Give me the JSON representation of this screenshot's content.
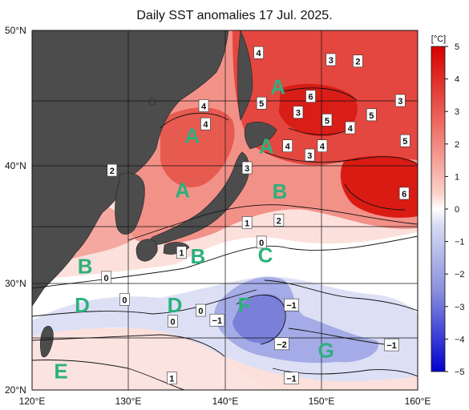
{
  "map": {
    "title": "Daily SST anomalies 17 Jul. 2025.",
    "lat_labels": [
      "50°N",
      "40°N",
      "30°N",
      "20°N"
    ],
    "lon_labels": [
      "120°E",
      "130°E",
      "140°E",
      "150°E",
      "160°E"
    ],
    "regions": [
      {
        "id": "A1",
        "label": "A",
        "lon": 145.5,
        "lat": 46.0
      },
      {
        "id": "A2",
        "label": "A",
        "lon": 136.6,
        "lat": 42.3
      },
      {
        "id": "A3",
        "label": "A",
        "lon": 144.3,
        "lat": 41.5
      },
      {
        "id": "A4",
        "label": "A",
        "lon": 135.6,
        "lat": 38.0
      },
      {
        "id": "B1",
        "label": "B",
        "lon": 145.7,
        "lat": 37.9
      },
      {
        "id": "B2",
        "label": "B",
        "lon": 137.2,
        "lat": 32.4
      },
      {
        "id": "B3",
        "label": "B",
        "lon": 125.5,
        "lat": 31.5
      },
      {
        "id": "C",
        "label": "C",
        "lon": 144.2,
        "lat": 32.5
      },
      {
        "id": "D1",
        "label": "D",
        "lon": 125.2,
        "lat": 28.0
      },
      {
        "id": "D2",
        "label": "D",
        "lon": 134.8,
        "lat": 28.0
      },
      {
        "id": "E",
        "label": "E",
        "lon": 123.0,
        "lat": 21.8
      },
      {
        "id": "F",
        "label": "F",
        "lon": 142.0,
        "lat": 28.0
      },
      {
        "id": "G",
        "label": "G",
        "lon": 150.5,
        "lat": 23.8
      }
    ],
    "contour_labels": [
      {
        "text": "4",
        "lon": 143.5,
        "lat": 48.4
      },
      {
        "text": "3",
        "lon": 151.0,
        "lat": 47.9
      },
      {
        "text": "2",
        "lon": 153.8,
        "lat": 47.8
      },
      {
        "text": "4",
        "lon": 137.8,
        "lat": 44.6
      },
      {
        "text": "4",
        "lon": 138.0,
        "lat": 43.2
      },
      {
        "text": "5",
        "lon": 143.8,
        "lat": 44.8
      },
      {
        "text": "6",
        "lon": 148.9,
        "lat": 45.3
      },
      {
        "text": "3",
        "lon": 147.6,
        "lat": 44.1
      },
      {
        "text": "3",
        "lon": 158.2,
        "lat": 45.0
      },
      {
        "text": "5",
        "lon": 150.6,
        "lat": 43.5
      },
      {
        "text": "5",
        "lon": 155.2,
        "lat": 43.9
      },
      {
        "text": "4",
        "lon": 153.0,
        "lat": 42.9
      },
      {
        "text": "4",
        "lon": 146.5,
        "lat": 41.5
      },
      {
        "text": "4",
        "lon": 150.1,
        "lat": 41.5
      },
      {
        "text": "3",
        "lon": 148.8,
        "lat": 40.8
      },
      {
        "text": "5",
        "lon": 158.7,
        "lat": 41.9
      },
      {
        "text": "2",
        "lon": 128.3,
        "lat": 39.6
      },
      {
        "text": "3",
        "lon": 142.3,
        "lat": 39.8
      },
      {
        "text": "6",
        "lon": 158.6,
        "lat": 37.7
      },
      {
        "text": "1",
        "lon": 142.3,
        "lat": 35.3
      },
      {
        "text": "2",
        "lon": 145.6,
        "lat": 35.5
      },
      {
        "text": "0",
        "lon": 143.8,
        "lat": 33.6
      },
      {
        "text": "1",
        "lon": 135.5,
        "lat": 32.7
      },
      {
        "text": "0",
        "lon": 127.7,
        "lat": 30.5
      },
      {
        "text": "0",
        "lon": 129.6,
        "lat": 28.5
      },
      {
        "text": "0",
        "lon": 134.6,
        "lat": 26.5
      },
      {
        "text": "0",
        "lon": 137.5,
        "lat": 27.5
      },
      {
        "text": "−1",
        "lon": 139.2,
        "lat": 26.6
      },
      {
        "text": "−1",
        "lon": 146.9,
        "lat": 28.0
      },
      {
        "text": "−2",
        "lon": 145.9,
        "lat": 24.4
      },
      {
        "text": "−1",
        "lon": 157.3,
        "lat": 24.3
      },
      {
        "text": "−1",
        "lon": 146.9,
        "lat": 21.1
      },
      {
        "text": "1",
        "lon": 134.5,
        "lat": 21.1
      }
    ],
    "colorbar": {
      "unit": "[°C]",
      "ticks": [
        "5",
        "4",
        "3",
        "2",
        "1",
        "0",
        "−1",
        "−2",
        "−3",
        "−4",
        "−5"
      ],
      "colors": [
        "#d70000",
        "#e5403c",
        "#ef7169",
        "#f59d95",
        "#fbc9c2",
        "#fff0ee",
        "#eaeaf8",
        "#c4c9ef",
        "#9ea5e4",
        "#7278d7",
        "#3f44c9",
        "#0000d0"
      ]
    },
    "land_color": "#4c4c4c"
  }
}
